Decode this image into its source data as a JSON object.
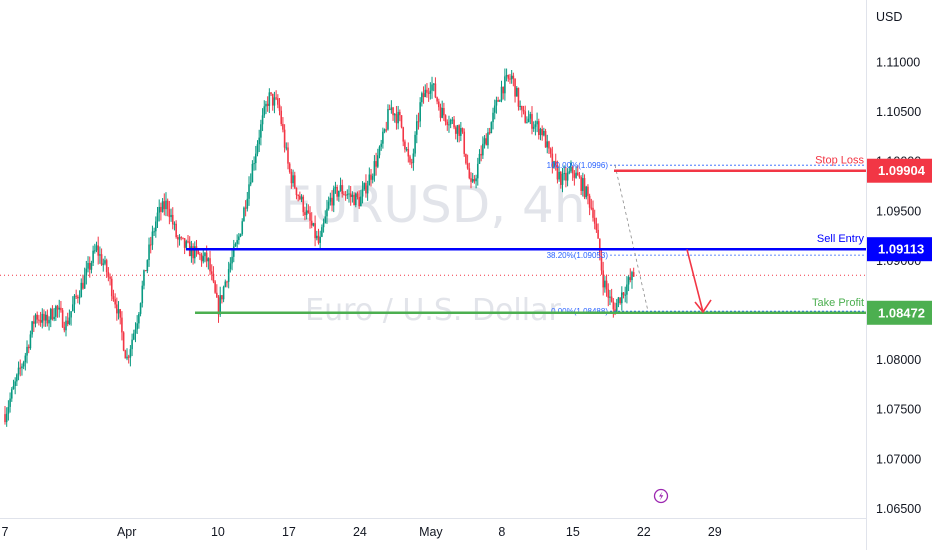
{
  "chart_data": {
    "type": "candlestick",
    "currency": "USD",
    "watermark": {
      "symbol": "EURUSD, 4h",
      "name": "Euro / U.S. Dollar"
    },
    "y_ticks": [
      "1.11000",
      "1.10500",
      "1.10000",
      "1.09500",
      "1.09000",
      "1.08500",
      "1.08000",
      "1.07500",
      "1.07000",
      "1.06500"
    ],
    "x_ticks": [
      {
        "label": "7",
        "day": 0
      },
      {
        "label": "Apr",
        "day": 12
      },
      {
        "label": "10",
        "day": 21
      },
      {
        "label": "17",
        "day": 28
      },
      {
        "label": "24",
        "day": 35
      },
      {
        "label": "May",
        "day": 42
      },
      {
        "label": "8",
        "day": 49
      },
      {
        "label": "15",
        "day": 56
      },
      {
        "label": "22",
        "day": 63
      },
      {
        "label": "29",
        "day": 70
      }
    ],
    "ylim": [
      1.0605,
      1.1145
    ],
    "levels": [
      {
        "name": "Stop Loss",
        "price": 1.09904,
        "tag": "1.09904",
        "color": "#f23645"
      },
      {
        "name": "Sell Entry",
        "price": 1.09113,
        "tag": "1.09113",
        "color": "#0000ff"
      },
      {
        "name": "Take Profit",
        "price": 1.08472,
        "tag": "1.08472",
        "color": "#4caf50"
      }
    ],
    "fibonacci": [
      {
        "label": "100.00%(1.0996)",
        "price": 1.0996
      },
      {
        "label": "38.20%(1.09053)",
        "price": 1.09053
      },
      {
        "label": "0.00%(1.08488)",
        "price": 1.08488
      }
    ],
    "last_price": 1.0885,
    "path": [
      [
        0.0,
        1.0745
      ],
      [
        1.0,
        1.0775
      ],
      [
        2.0,
        1.0805
      ],
      [
        3.0,
        1.0845
      ],
      [
        4.0,
        1.0838
      ],
      [
        5.0,
        1.0852
      ],
      [
        6.0,
        1.0835
      ],
      [
        7.0,
        1.0862
      ],
      [
        8.0,
        1.0885
      ],
      [
        9.0,
        1.0912
      ],
      [
        10.0,
        1.089
      ],
      [
        11.0,
        1.0855
      ],
      [
        12.0,
        1.08
      ],
      [
        13.0,
        1.084
      ],
      [
        14.0,
        1.09
      ],
      [
        15.0,
        1.0945
      ],
      [
        16.0,
        1.0958
      ],
      [
        17.0,
        1.092
      ],
      [
        18.0,
        1.0912
      ],
      [
        19.0,
        1.0905
      ],
      [
        20.0,
        1.09
      ],
      [
        21.0,
        1.085
      ],
      [
        22.0,
        1.089
      ],
      [
        23.0,
        1.092
      ],
      [
        24.0,
        1.0975
      ],
      [
        25.0,
        1.1025
      ],
      [
        26.0,
        1.1065
      ],
      [
        27.0,
        1.1055
      ],
      [
        28.0,
        1.099
      ],
      [
        29.0,
        1.0965
      ],
      [
        30.0,
        1.094
      ],
      [
        31.0,
        1.0915
      ],
      [
        32.0,
        1.096
      ],
      [
        33.0,
        1.0972
      ],
      [
        34.0,
        1.0965
      ],
      [
        35.0,
        1.096
      ],
      [
        36.0,
        1.0985
      ],
      [
        37.0,
        1.101
      ],
      [
        38.0,
        1.1055
      ],
      [
        39.0,
        1.104
      ],
      [
        40.0,
        1.099
      ],
      [
        41.0,
        1.106
      ],
      [
        42.0,
        1.108
      ],
      [
        43.0,
        1.105
      ],
      [
        44.0,
        1.104
      ],
      [
        45.0,
        1.103
      ],
      [
        46.0,
        1.097
      ],
      [
        47.0,
        1.101
      ],
      [
        48.0,
        1.104
      ],
      [
        49.0,
        1.1075
      ],
      [
        50.0,
        1.1085
      ],
      [
        51.0,
        1.1045
      ],
      [
        52.0,
        1.104
      ],
      [
        53.0,
        1.103
      ],
      [
        54.0,
        1.0995
      ],
      [
        55.0,
        1.098
      ],
      [
        56.0,
        1.099
      ],
      [
        57.0,
        1.0975
      ],
      [
        58.0,
        1.095
      ],
      [
        59.0,
        1.088
      ],
      [
        60.0,
        1.085
      ],
      [
        61.0,
        1.087
      ],
      [
        62.0,
        1.0885
      ]
    ]
  }
}
